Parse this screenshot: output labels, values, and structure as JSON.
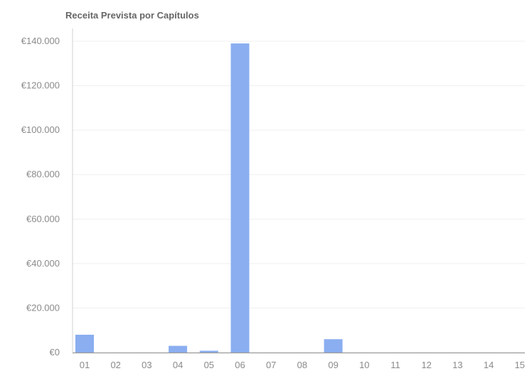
{
  "chart_data": {
    "type": "bar",
    "title": "Receita Prevista por Capítulos",
    "xlabel": "",
    "ylabel": "",
    "categories": [
      "01",
      "02",
      "03",
      "04",
      "05",
      "06",
      "07",
      "08",
      "09",
      "10",
      "11",
      "12",
      "13",
      "14",
      "15"
    ],
    "values": [
      8000,
      0,
      0,
      3000,
      800,
      139000,
      0,
      0,
      6000,
      0,
      0,
      0,
      0,
      0,
      0
    ],
    "ylim": [
      0,
      140000
    ],
    "y_ticks": [
      0,
      20000,
      40000,
      60000,
      80000,
      100000,
      120000,
      140000
    ],
    "y_tick_labels": [
      "€0",
      "€20.000",
      "€40.000",
      "€60.000",
      "€80.000",
      "€100.000",
      "€120.000",
      "€140.000"
    ],
    "grid": true,
    "legend": "none",
    "bar_color": "#8aaef0",
    "grid_color": "#efefef",
    "axis_color": "#d0d0d0",
    "label_color": "#8a8a8a"
  }
}
